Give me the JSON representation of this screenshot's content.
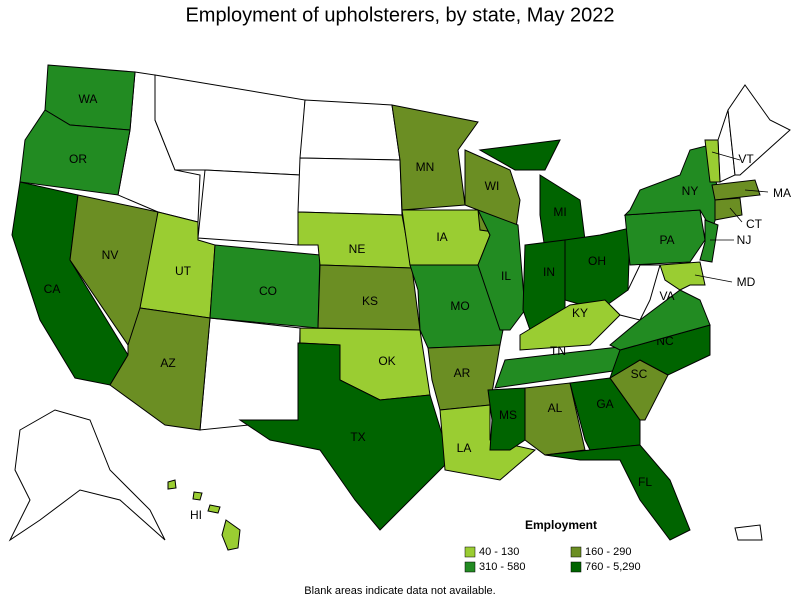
{
  "title": "Employment of upholsterers, by state, May 2022",
  "states": [
    {
      "label": "WA",
      "color": "#228b22"
    },
    {
      "label": "OR",
      "color": "#228b22"
    },
    {
      "label": "CA",
      "color": "#006400"
    },
    {
      "label": "NV",
      "color": "#6b8e23"
    },
    {
      "label": "UT",
      "color": "#9acd32"
    },
    {
      "label": "AZ",
      "color": "#6b8e23"
    },
    {
      "label": "CO",
      "color": "#228b22"
    },
    {
      "label": "NE",
      "color": "#9acd32"
    },
    {
      "label": "KS",
      "color": "#6b8e23"
    },
    {
      "label": "OK",
      "color": "#9acd32"
    },
    {
      "label": "TX",
      "color": "#006400"
    },
    {
      "label": "MN",
      "color": "#6b8e23"
    },
    {
      "label": "IA",
      "color": "#9acd32"
    },
    {
      "label": "MO",
      "color": "#228b22"
    },
    {
      "label": "AR",
      "color": "#6b8e23"
    },
    {
      "label": "LA",
      "color": "#9acd32"
    },
    {
      "label": "WI",
      "color": "#6b8e23"
    },
    {
      "label": "IL",
      "color": "#228b22"
    },
    {
      "label": "MI",
      "color": "#006400"
    },
    {
      "label": "IN",
      "color": "#006400"
    },
    {
      "label": "OH",
      "color": "#006400"
    },
    {
      "label": "KY",
      "color": "#9acd32"
    },
    {
      "label": "TN",
      "color": "#228b22"
    },
    {
      "label": "MS",
      "color": "#006400"
    },
    {
      "label": "AL",
      "color": "#6b8e23"
    },
    {
      "label": "GA",
      "color": "#006400"
    },
    {
      "label": "FL",
      "color": "#006400"
    },
    {
      "label": "SC",
      "color": "#6b8e23"
    },
    {
      "label": "NC",
      "color": "#006400"
    },
    {
      "label": "VA",
      "color": "#228b22"
    },
    {
      "label": "PA",
      "color": "#228b22"
    },
    {
      "label": "NY",
      "color": "#228b22"
    },
    {
      "label": "VT",
      "color": "#9acd32"
    },
    {
      "label": "MA",
      "color": "#6b8e23"
    },
    {
      "label": "CT",
      "color": "#6b8e23"
    },
    {
      "label": "NJ",
      "color": "#228b22"
    },
    {
      "label": "MD",
      "color": "#9acd32"
    },
    {
      "label": "HI",
      "color": "#9acd32"
    }
  ],
  "legend": {
    "title": "Employment",
    "items": [
      {
        "label": "40 - 130",
        "color": "#9acd32"
      },
      {
        "label": "160 - 290",
        "color": "#6b8e23"
      },
      {
        "label": "310 - 580",
        "color": "#228b22"
      },
      {
        "label": "760 - 5,290",
        "color": "#006400"
      }
    ]
  },
  "footnote": "Blank areas indicate data not available."
}
